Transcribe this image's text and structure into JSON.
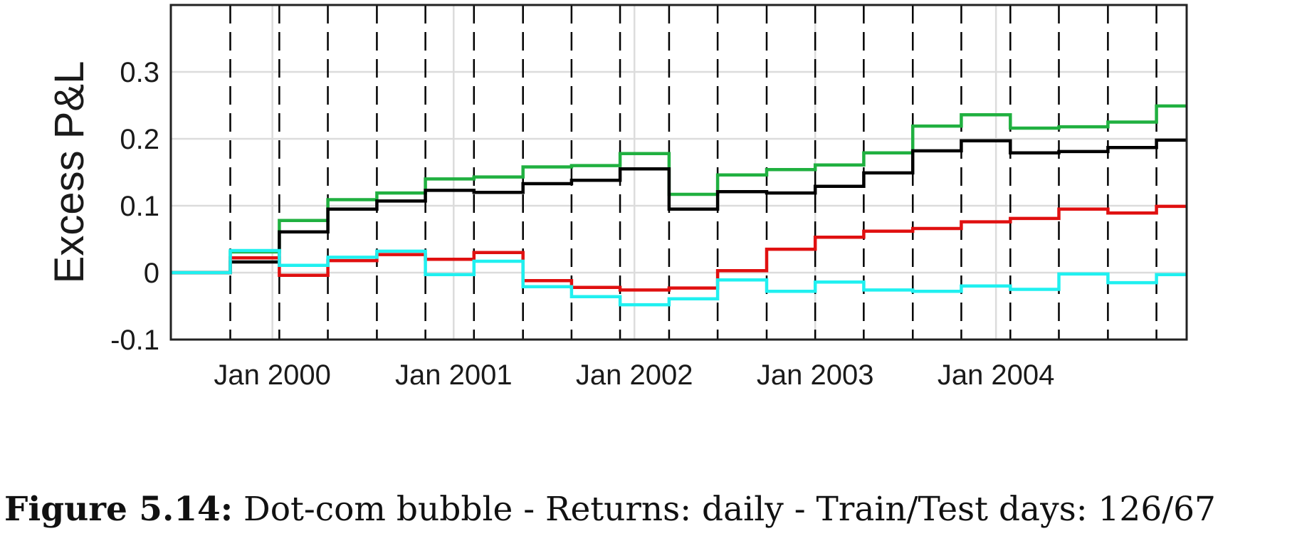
{
  "chart_data": {
    "type": "line",
    "title": "",
    "xlabel": "",
    "ylabel": "Excess P&L",
    "xlim": [
      "1999-06-10",
      "2005-01-20"
    ],
    "ylim": [
      -0.1,
      0.4
    ],
    "yticks": [
      -0.1,
      0,
      0.1,
      0.2,
      0.3
    ],
    "ytick_labels": [
      "-0.1",
      "0",
      "0.1",
      "0.2",
      "0.3"
    ],
    "xticks": [
      {
        "date": "2000-01-01",
        "label": "Jan 2000"
      },
      {
        "date": "2001-01-01",
        "label": "Jan 2001"
      },
      {
        "date": "2002-01-01",
        "label": "Jan 2002"
      },
      {
        "date": "2003-01-01",
        "label": "Jan 2003"
      },
      {
        "date": "2004-01-01",
        "label": "Jan 2004"
      }
    ],
    "grid": true,
    "test_window_starts": [
      "1999-10-08",
      "2000-01-15",
      "2000-04-22",
      "2000-07-30",
      "2000-11-05",
      "2001-02-11",
      "2001-05-21",
      "2001-08-27",
      "2001-12-03",
      "2002-03-12",
      "2002-06-18",
      "2002-09-25",
      "2003-01-01",
      "2003-04-09",
      "2003-07-17",
      "2003-10-23",
      "2004-01-30",
      "2004-05-07",
      "2004-08-14",
      "2004-11-20"
    ],
    "x": [
      "1999-06-10",
      "1999-10-08",
      "2000-01-15",
      "2000-04-22",
      "2000-07-30",
      "2000-11-05",
      "2001-02-11",
      "2001-05-21",
      "2001-08-27",
      "2001-12-03",
      "2002-03-12",
      "2002-06-18",
      "2002-09-25",
      "2003-01-01",
      "2003-04-09",
      "2003-07-17",
      "2003-10-23",
      "2004-01-30",
      "2004-05-07",
      "2004-08-14",
      "2004-11-20",
      "2005-01-20"
    ],
    "series": [
      {
        "color": "#20b040",
        "values": [
          0,
          0.031,
          0.078,
          0.109,
          0.119,
          0.14,
          0.143,
          0.158,
          0.16,
          0.178,
          0.117,
          0.146,
          0.154,
          0.161,
          0.179,
          0.219,
          0.236,
          0.216,
          0.218,
          0.225,
          0.249,
          0.249
        ]
      },
      {
        "color": "#000000",
        "values": [
          0,
          0.016,
          0.061,
          0.095,
          0.107,
          0.123,
          0.12,
          0.133,
          0.138,
          0.155,
          0.095,
          0.121,
          0.119,
          0.129,
          0.149,
          0.182,
          0.197,
          0.179,
          0.181,
          0.187,
          0.198,
          0.198
        ]
      },
      {
        "color": "#e01010",
        "values": [
          0,
          0.022,
          -0.004,
          0.018,
          0.027,
          0.02,
          0.03,
          -0.012,
          -0.022,
          -0.026,
          -0.023,
          0.003,
          0.035,
          0.053,
          0.062,
          0.066,
          0.076,
          0.081,
          0.095,
          0.089,
          0.099,
          0.099
        ]
      },
      {
        "color": "#20f0f0",
        "values": [
          0,
          0.033,
          0.011,
          0.023,
          0.032,
          -0.003,
          0.017,
          -0.021,
          -0.036,
          -0.048,
          -0.039,
          -0.011,
          -0.028,
          -0.014,
          -0.026,
          -0.028,
          -0.02,
          -0.025,
          -0.002,
          -0.015,
          -0.003,
          -0.003
        ]
      }
    ]
  },
  "caption": {
    "label": "Figure 5.14:",
    "text": " Dot-com bubble - Returns: daily - Train/Test days: 126/67"
  }
}
